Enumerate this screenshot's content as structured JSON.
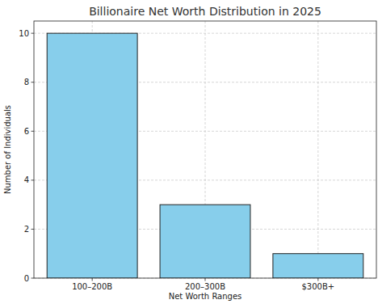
{
  "chart_data": {
    "type": "bar",
    "title": "Billionaire Net Worth Distribution in 2025",
    "x_label": "Net Worth Ranges",
    "y_label": "Number of Individuals",
    "categories": [
      "100–200B",
      "200–300B",
      "$300B+"
    ],
    "values": [
      10,
      3,
      1
    ],
    "color": "#87ceeb",
    "ylim": [
      0,
      10.5
    ],
    "yticks": [
      0,
      2,
      4,
      6,
      8,
      10
    ],
    "grid": true
  }
}
